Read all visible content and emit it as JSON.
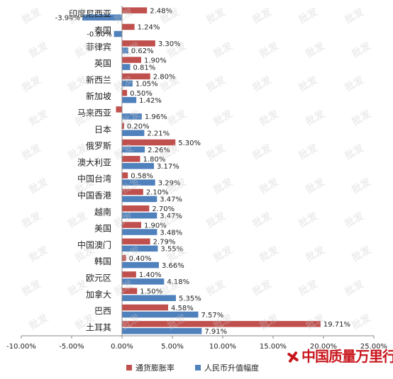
{
  "chart_data": {
    "type": "bar",
    "orientation": "horizontal",
    "categories": [
      "印度尼西亚",
      "泰国",
      "菲律宾",
      "英国",
      "新西兰",
      "新加坡",
      "马来西亚",
      "日本",
      "俄罗斯",
      "澳大利亚",
      "中国台湾",
      "中国香港",
      "越南",
      "美国",
      "中国澳门",
      "韩国",
      "欧元区",
      "加拿大",
      "巴西",
      "土耳其"
    ],
    "series": [
      {
        "name": "通货膨胀率",
        "color": "#c0504d",
        "values": [
          2.48,
          1.24,
          3.3,
          1.9,
          2.8,
          0.5,
          -0.6,
          0.2,
          5.3,
          1.8,
          0.58,
          2.1,
          2.7,
          1.9,
          2.79,
          0.4,
          1.4,
          1.5,
          4.58,
          19.71
        ],
        "labels": [
          "2.48%",
          "1.24%",
          "3.30%",
          "1.90%",
          "2.80%",
          "0.50%",
          "",
          "0.20%",
          "5.30%",
          "1.80%",
          "0.58%",
          "2.10%",
          "2.70%",
          "1.90%",
          "2.79%",
          "0.40%",
          "1.40%",
          "1.50%",
          "4.58%",
          "19.71%"
        ]
      },
      {
        "name": "人民币升值幅度",
        "color": "#4f81bd",
        "values": [
          -3.94,
          -0.8,
          0.62,
          0.81,
          1.05,
          1.42,
          1.96,
          2.21,
          2.26,
          3.17,
          3.29,
          3.47,
          3.47,
          3.48,
          3.55,
          3.66,
          4.18,
          5.35,
          7.57,
          7.91
        ],
        "labels": [
          "-3.94%",
          "-0.80%",
          "0.62%",
          "0.81%",
          "1.05%",
          "1.42%",
          "1.96%",
          "2.21%",
          "2.26%",
          "3.17%",
          "3.29%",
          "3.47%",
          "3.47%",
          "3.48%",
          "3.55%",
          "3.66%",
          "4.18%",
          "5.35%",
          "7.57%",
          "7.91%"
        ]
      }
    ],
    "xlim": [
      -10,
      25
    ],
    "xticks": [
      -10,
      -5,
      0,
      5,
      10,
      15,
      20,
      25
    ],
    "xtick_labels": [
      "-10.00%",
      "-5.00%",
      "0.00%",
      "5.00%",
      "10.00%",
      "15.00%",
      "20.00%",
      "25.00%"
    ],
    "grid": false,
    "legend_position": "bottom",
    "title": "",
    "xlabel": "",
    "ylabel": ""
  },
  "watermark": "批发",
  "logo_text": "中国质量万里行"
}
